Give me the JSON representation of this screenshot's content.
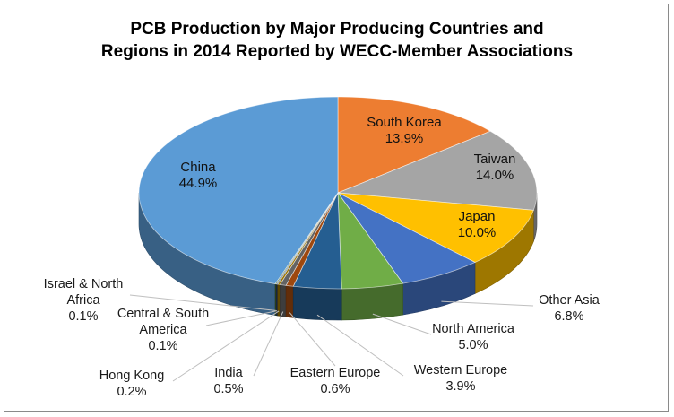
{
  "chart_data": {
    "type": "pie",
    "style": "3d",
    "title": "PCB Production by Major Producing Countries and Regions in 2014 Reported by WECC-Member Associations",
    "title_lines": [
      "PCB Production by Major Producing Countries and",
      "Regions in 2014 Reported by WECC-Member Associations"
    ],
    "legend": "none",
    "slices": [
      {
        "name": "South Korea",
        "value": 13.9,
        "label": "13.9%",
        "color": "#ED7D31"
      },
      {
        "name": "Taiwan",
        "value": 14.0,
        "label": "14.0%",
        "color": "#A5A5A5"
      },
      {
        "name": "Japan",
        "value": 10.0,
        "label": "10.0%",
        "color": "#FFC000"
      },
      {
        "name": "Other Asia",
        "value": 6.8,
        "label": "6.8%",
        "color": "#4472C4"
      },
      {
        "name": "North America",
        "value": 5.0,
        "label": "5.0%",
        "color": "#70AD47"
      },
      {
        "name": "Western Europe",
        "value": 3.9,
        "label": "3.9%",
        "color": "#255E91"
      },
      {
        "name": "Eastern Europe",
        "value": 0.6,
        "label": "0.6%",
        "color": "#9E480E"
      },
      {
        "name": "India",
        "value": 0.5,
        "label": "0.5%",
        "color": "#636363"
      },
      {
        "name": "Hong Kong",
        "value": 0.2,
        "label": "0.2%",
        "color": "#997300"
      },
      {
        "name": "Central & South America",
        "value": 0.1,
        "label": "0.1%",
        "color": "#264478"
      },
      {
        "name": "Israel & North Africa",
        "value": 0.1,
        "label": "0.1%",
        "color": "#43682B"
      },
      {
        "name": "China",
        "value": 44.9,
        "label": "44.9%",
        "color": "#5B9BD5"
      }
    ],
    "label_lines": {
      "South Korea": [
        "South Korea"
      ],
      "Taiwan": [
        "Taiwan"
      ],
      "Japan": [
        "Japan"
      ],
      "Other Asia": [
        "Other Asia"
      ],
      "North America": [
        "North America"
      ],
      "Western Europe": [
        "Western Europe"
      ],
      "Eastern Europe": [
        "Eastern Europe"
      ],
      "India": [
        "India"
      ],
      "Hong Kong": [
        "Hong Kong"
      ],
      "Central & South America": [
        "Central & South",
        "America"
      ],
      "Israel & North Africa": [
        "Israel & North",
        "Africa"
      ],
      "China": [
        "China"
      ]
    }
  }
}
